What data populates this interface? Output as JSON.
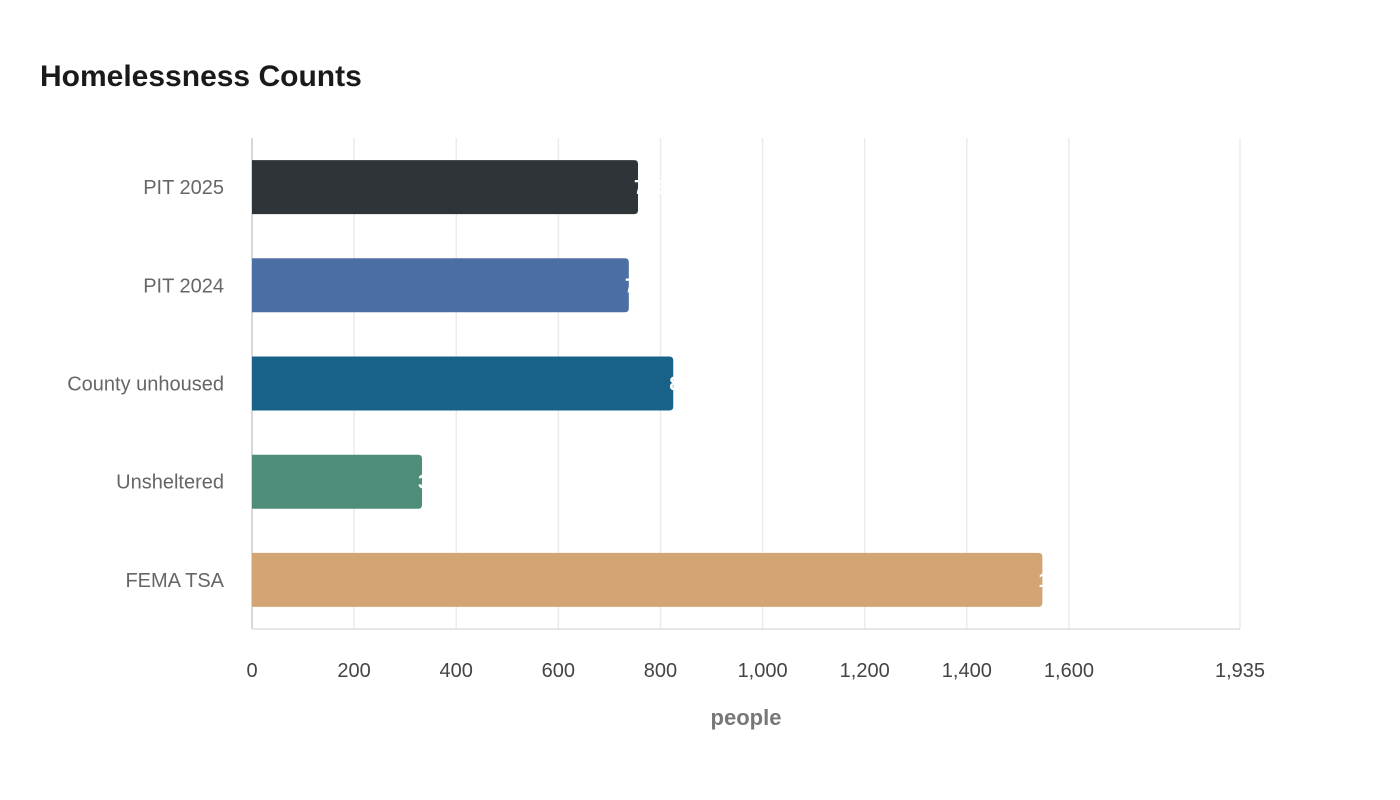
{
  "chart_data": {
    "type": "bar",
    "orientation": "horizontal",
    "title": "Homelessness Counts",
    "xlabel": "people",
    "ylabel": "",
    "categories": [
      "PIT 2025",
      "PIT 2024",
      "County unhoused",
      "Unsheltered",
      "FEMA TSA"
    ],
    "values": [
      756,
      738,
      825,
      333,
      1548
    ],
    "colors": [
      "#2e3437",
      "#4b6fa5",
      "#186289",
      "#4f8d7b",
      "#d4a574"
    ],
    "xlim": [
      0,
      1935
    ],
    "xticks": [
      0,
      200,
      400,
      600,
      800,
      1000,
      1200,
      1400,
      1600,
      1935
    ],
    "xtick_labels": [
      "0",
      "200",
      "400",
      "600",
      "800",
      "1,000",
      "1,200",
      "1,400",
      "1,600",
      "1,935"
    ],
    "grid": true,
    "legend": "none"
  }
}
